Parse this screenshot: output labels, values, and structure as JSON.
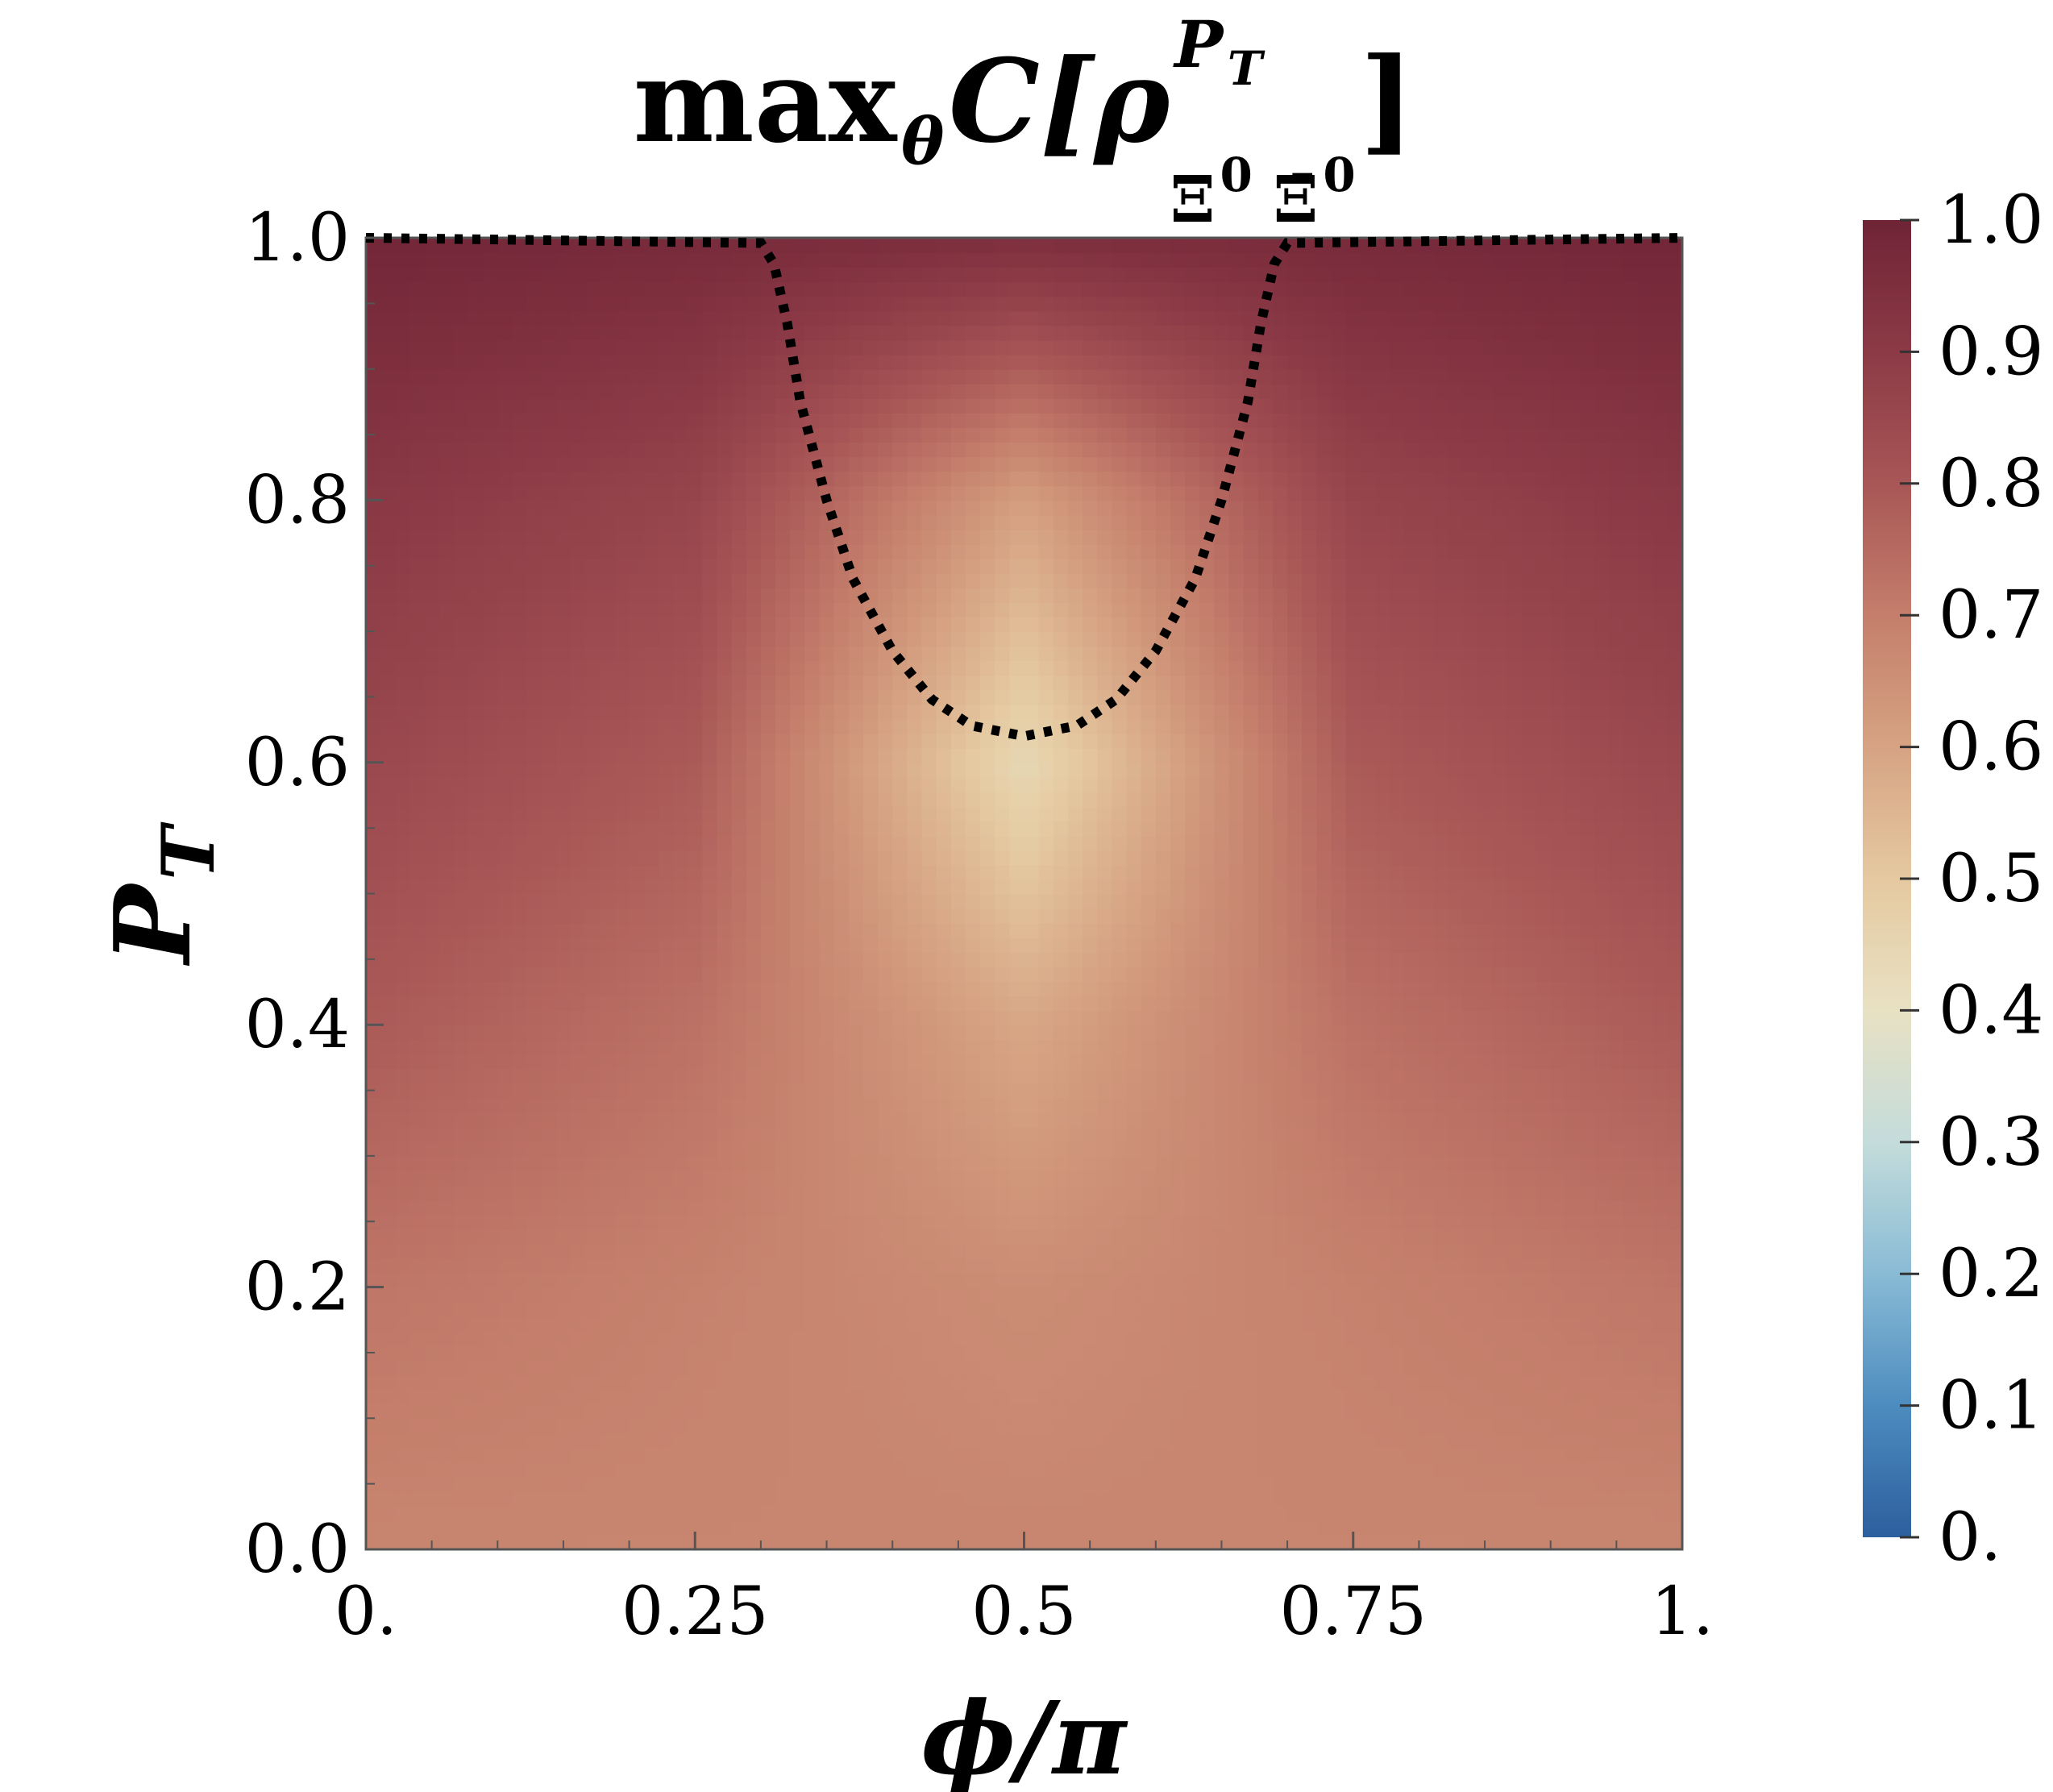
{
  "chart_data": {
    "type": "heatmap",
    "title": {
      "prefix": "max",
      "sub_theta": "θ",
      "func": "C[ρ",
      "sup": "P",
      "sup_sub": "T",
      "sub_a": "Ξ",
      "sub_a_sup": "0",
      "sub_b": "Ξ̄",
      "sub_b_sup": "0",
      "close": "]"
    },
    "xlabel": "ϕ/π",
    "ylabel": {
      "main": "P",
      "sub": "T"
    },
    "xlim": [
      0,
      1
    ],
    "ylim": [
      0,
      1
    ],
    "xticks": [
      {
        "value": 0,
        "label": "0."
      },
      {
        "value": 0.25,
        "label": "0.25"
      },
      {
        "value": 0.5,
        "label": "0.5"
      },
      {
        "value": 0.75,
        "label": "0.75"
      },
      {
        "value": 1,
        "label": "1."
      }
    ],
    "yticks": [
      {
        "value": 0,
        "label": "0.0"
      },
      {
        "value": 0.2,
        "label": "0.2"
      },
      {
        "value": 0.4,
        "label": "0.4"
      },
      {
        "value": 0.6,
        "label": "0.6"
      },
      {
        "value": 0.8,
        "label": "0.8"
      },
      {
        "value": 1.0,
        "label": "1.0"
      }
    ],
    "colorbar": {
      "range": [
        0,
        1
      ],
      "ticks": [
        {
          "value": 0,
          "label": "0."
        },
        {
          "value": 0.1,
          "label": "0.1"
        },
        {
          "value": 0.2,
          "label": "0.2"
        },
        {
          "value": 0.3,
          "label": "0.3"
        },
        {
          "value": 0.4,
          "label": "0.4"
        },
        {
          "value": 0.5,
          "label": "0.5"
        },
        {
          "value": 0.6,
          "label": "0.6"
        },
        {
          "value": 0.7,
          "label": "0.7"
        },
        {
          "value": 0.8,
          "label": "0.8"
        },
        {
          "value": 0.9,
          "label": "0.9"
        },
        {
          "value": 1.0,
          "label": "1.0"
        }
      ],
      "colors": [
        "#2c5f9e",
        "#4d8cbf",
        "#89bbd5",
        "#c4dcdb",
        "#e8e1c3",
        "#e5c9a0",
        "#d6a383",
        "#c47e6b",
        "#a85656",
        "#8c3a46",
        "#6f2436"
      ]
    },
    "heatmap_description": "C values: approx 0.68 along PT=0, decreasing to about 0.43 near phi/pi=0.5, PT=0.62, rising to 1.0 at PT=1 and at the phi edges near high PT",
    "sampled_values": {
      "phi": [
        0,
        0.25,
        0.5,
        0.75,
        1
      ],
      "PT": [
        0,
        0.2,
        0.4,
        0.6,
        0.8,
        1.0
      ],
      "grid": [
        [
          0.68,
          0.68,
          0.68,
          0.68,
          0.68
        ],
        [
          0.72,
          0.69,
          0.66,
          0.69,
          0.72
        ],
        [
          0.79,
          0.73,
          0.59,
          0.73,
          0.79
        ],
        [
          0.85,
          0.79,
          0.44,
          0.79,
          0.85
        ],
        [
          0.91,
          0.86,
          0.61,
          0.86,
          0.91
        ],
        [
          0.99,
          0.97,
          0.95,
          0.97,
          0.99
        ]
      ]
    },
    "boundary_curve": {
      "style": "dotted",
      "color": "#000000",
      "x": [
        0,
        0.3,
        0.31,
        0.32,
        0.33,
        0.35,
        0.37,
        0.4,
        0.43,
        0.46,
        0.5,
        0.54,
        0.57,
        0.6,
        0.63,
        0.65,
        0.67,
        0.68,
        0.69,
        0.7,
        1
      ],
      "y": [
        1.0,
        0.996,
        0.98,
        0.935,
        0.875,
        0.8,
        0.74,
        0.685,
        0.648,
        0.628,
        0.62,
        0.628,
        0.648,
        0.685,
        0.74,
        0.8,
        0.875,
        0.935,
        0.98,
        0.996,
        1.0
      ]
    }
  }
}
